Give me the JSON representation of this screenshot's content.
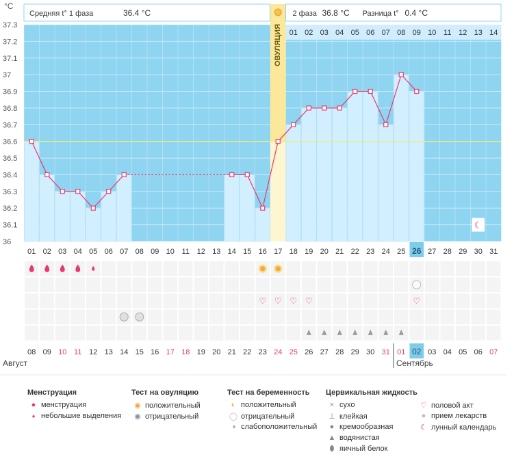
{
  "chart_data": {
    "type": "line",
    "title": "",
    "ylabel": "°C",
    "ylim": [
      36.0,
      37.3
    ],
    "yticks": [
      "37.3",
      "37.2",
      "37.1",
      "37",
      "36.9",
      "36.8",
      "36.7",
      "36.6",
      "36.5",
      "36.4",
      "36.3",
      "36.2",
      "36.1",
      "36"
    ],
    "coverline": 36.6,
    "header": {
      "phase1": "Средняя t° 1 фаза",
      "phase1_value": "36.4 °C",
      "phase2": "2 фаза",
      "phase2_value": "36.8 °C",
      "diff": "Разница t°",
      "diff_value": "0.4 °C"
    },
    "ovulation_label": "ОВУЛЯЦИЯ",
    "ovulation_day_index": 16,
    "cycle_days": [
      "01",
      "02",
      "03",
      "04",
      "05",
      "06",
      "07",
      "08",
      "09",
      "10",
      "11",
      "12",
      "13",
      "14",
      "15",
      "16",
      "17",
      "18",
      "19",
      "20",
      "21",
      "22",
      "23",
      "24",
      "25",
      "26",
      "27",
      "28",
      "29",
      "30",
      "31"
    ],
    "luteal_days": [
      "01",
      "02",
      "03",
      "04",
      "05",
      "06",
      "07",
      "08",
      "09",
      "10",
      "11",
      "12",
      "13",
      "14"
    ],
    "today_index": 25,
    "dates": [
      "08",
      "09",
      "10",
      "11",
      "12",
      "13",
      "14",
      "15",
      "16",
      "17",
      "18",
      "19",
      "20",
      "21",
      "22",
      "23",
      "24",
      "25",
      "26",
      "27",
      "28",
      "29",
      "30",
      "31",
      "01",
      "02",
      "03",
      "04",
      "05",
      "06",
      "07"
    ],
    "weekend_indexes": [
      2,
      3,
      9,
      10,
      16,
      17,
      23,
      24,
      30
    ],
    "month_start": "Август",
    "month_next": "Сентябрь",
    "month_break_index": 24,
    "temperatures": [
      36.6,
      36.4,
      36.3,
      36.3,
      36.2,
      36.3,
      36.4,
      null,
      null,
      null,
      null,
      null,
      null,
      36.4,
      36.4,
      36.2,
      36.6,
      36.7,
      36.8,
      36.8,
      36.8,
      36.9,
      36.9,
      36.7,
      37.0,
      36.9,
      null,
      null,
      null,
      null,
      null
    ],
    "interpolated": [
      {
        "from": 6,
        "to": 13
      }
    ],
    "rows": {
      "menstruation": [
        0,
        1,
        2,
        3
      ],
      "spotting": [
        4
      ],
      "ovulation_positive": [
        15,
        16
      ],
      "pregnancy_negative": [
        25
      ],
      "intercourse": [
        15,
        16,
        17,
        18,
        25
      ],
      "medication": [
        6,
        7
      ],
      "fluid_watery": [
        18,
        19,
        20,
        21,
        22,
        23,
        24
      ],
      "lunar": [
        29
      ]
    }
  },
  "legend": {
    "menstruation": {
      "title": "Менструация",
      "items": [
        "менструация",
        "небольшие выделения"
      ]
    },
    "ovulation_test": {
      "title": "Тест на овуляцию",
      "items": [
        "положительный",
        "отрицательный"
      ]
    },
    "pregnancy_test": {
      "title": "Тест на беременность",
      "items": [
        "положительный",
        "отрицательный",
        "слабоположительный"
      ]
    },
    "cervical_fluid": {
      "title": "Цервикальная жидкость",
      "items": [
        "сухо",
        "клейкая",
        "кремообразная",
        "водянистая",
        "яичный белок"
      ]
    },
    "other": {
      "items": [
        "половой акт",
        "прием лекарств",
        "лунный календарь"
      ]
    }
  },
  "colors": {
    "sky": "#8fd4f0",
    "bar": "#d2efff",
    "line": "#e8396e",
    "coverline": "#e6f07a",
    "ovulation": "#fbe89a",
    "weekend": "#e8396e",
    "today": "#7fcbea"
  }
}
